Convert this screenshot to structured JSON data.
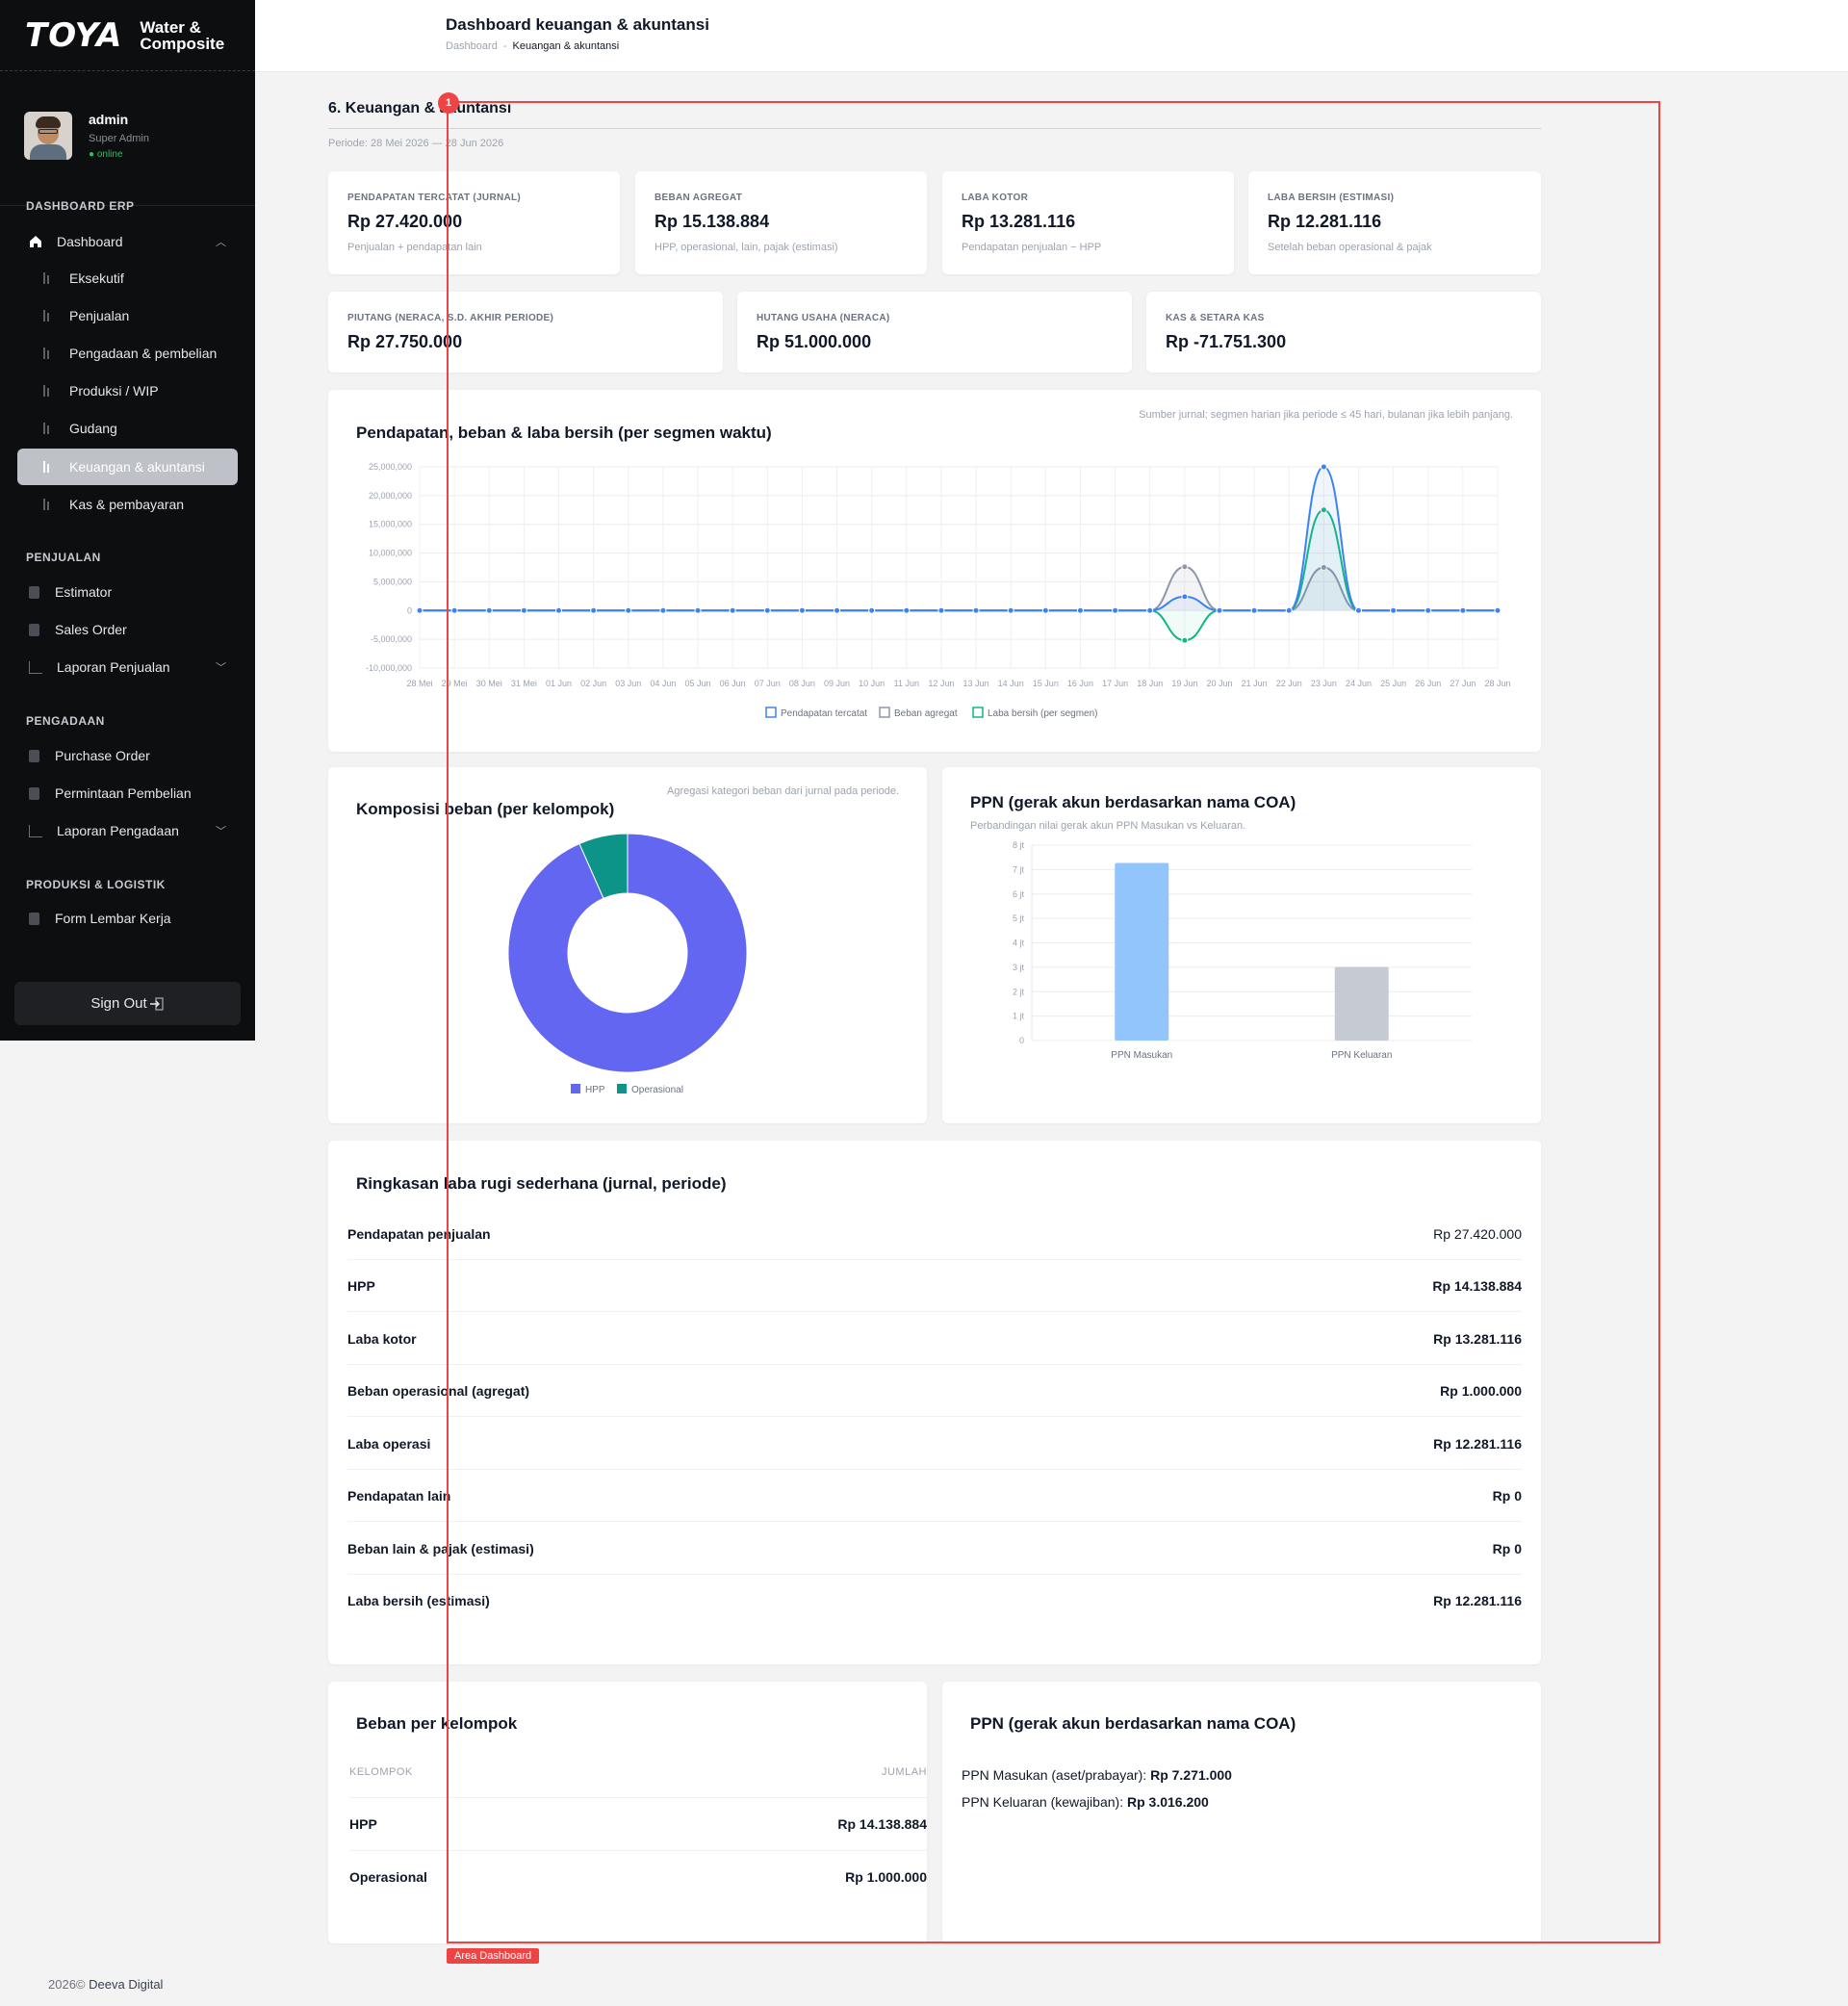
{
  "brand": {
    "logo": "TOYA",
    "sub_line1": "Water &",
    "sub_line2": "Composite"
  },
  "user": {
    "name": "admin",
    "role": "Super Admin",
    "status": "● online"
  },
  "nav": {
    "section_erp": "DASHBOARD ERP",
    "dashboard": "Dashboard",
    "sub_items": [
      "Eksekutif",
      "Penjualan",
      "Pengadaan & pembelian",
      "Produksi / WIP",
      "Gudang",
      "Keuangan & akuntansi",
      "Kas & pembayaran"
    ],
    "section_penjualan": "PENJUALAN",
    "penjualan_items": [
      "Estimator",
      "Sales Order",
      "Laporan Penjualan"
    ],
    "section_pengadaan": "PENGADAAN",
    "pengadaan_items": [
      "Purchase Order",
      "Permintaan Pembelian",
      "Laporan Pengadaan"
    ],
    "section_produksi": "PRODUKSI & LOGISTIK",
    "produksi_items": [
      "Form Lembar Kerja"
    ],
    "sign_out": "Sign Out"
  },
  "header": {
    "title": "Dashboard keuangan & akuntansi",
    "breadcrumb_root": "Dashboard",
    "breadcrumb_sep": "-",
    "breadcrumb_current": "Keuangan & akuntansi"
  },
  "section": {
    "title": "6. Keuangan & akuntansi",
    "period": "Periode: 28 Mei 2026 — 28 Jun 2026"
  },
  "kpis_row1": [
    {
      "label": "PENDAPATAN TERCATAT (JURNAL)",
      "value": "Rp 27.420.000",
      "note": "Penjualan + pendapatan lain"
    },
    {
      "label": "BEBAN AGREGAT",
      "value": "Rp 15.138.884",
      "note": "HPP, operasional, lain, pajak (estimasi)"
    },
    {
      "label": "LABA KOTOR",
      "value": "Rp 13.281.116",
      "note": "Pendapatan penjualan − HPP"
    },
    {
      "label": "LABA BERSIH (ESTIMASI)",
      "value": "Rp 12.281.116",
      "note": "Setelah beban operasional & pajak"
    }
  ],
  "kpis_row2": [
    {
      "label": "PIUTANG (NERACA, S.D. AKHIR PERIODE)",
      "value": "Rp 27.750.000"
    },
    {
      "label": "HUTANG USAHA (NERACA)",
      "value": "Rp 51.000.000"
    },
    {
      "label": "KAS & SETARA KAS",
      "value": "Rp -71.751.300"
    }
  ],
  "line_card": {
    "title": "Pendapatan, beban & laba bersih (per segmen waktu)",
    "note": "Sumber jurnal; segmen harian jika periode ≤ 45 hari, bulanan jika lebih panjang."
  },
  "donut_card": {
    "title": "Komposisi beban (per kelompok)",
    "note": "Agregasi kategori beban dari jurnal pada periode."
  },
  "ppn_chart_card": {
    "title": "PPN (gerak akun berdasarkan nama COA)",
    "note": "Perbandingan nilai gerak akun PPN Masukan vs Keluaran."
  },
  "pl_card": {
    "title": "Ringkasan laba rugi sederhana (jurnal, periode)",
    "rows": [
      {
        "label": "Pendapatan penjualan",
        "value": "Rp 27.420.000"
      },
      {
        "label": "HPP",
        "value": "Rp 14.138.884"
      },
      {
        "label": "Laba kotor",
        "value": "Rp 13.281.116"
      },
      {
        "label": "Beban operasional (agregat)",
        "value": "Rp 1.000.000"
      },
      {
        "label": "Laba operasi",
        "value": "Rp 12.281.116"
      },
      {
        "label": "Pendapatan lain",
        "value": "Rp 0"
      },
      {
        "label": "Beban lain & pajak (estimasi)",
        "value": "Rp 0"
      },
      {
        "label": "Laba bersih (estimasi)",
        "value": "Rp 12.281.116"
      }
    ]
  },
  "group_card": {
    "title": "Beban per kelompok",
    "col_group": "KELOMPOK",
    "col_amount": "JUMLAH",
    "rows": [
      {
        "group": "HPP",
        "amount": "Rp 14.138.884"
      },
      {
        "group": "Operasional",
        "amount": "Rp 1.000.000"
      }
    ]
  },
  "ppn_text_card": {
    "title": "PPN (gerak akun berdasarkan nama COA)",
    "masukan_label": "PPN Masukan (aset/prabayar):",
    "masukan_value": "Rp 7.271.000",
    "keluaran_label": "PPN Keluaran (kewajiban):",
    "keluaran_value": "Rp 3.016.200"
  },
  "overlay": {
    "badge": "1",
    "label": "Area Dashboard"
  },
  "footer": {
    "year": "2026©",
    "company": "Deeva Digital"
  },
  "colors": {
    "revenue": "#3b82f6",
    "expense": "#8f96a6",
    "profit": "#10b981",
    "hpp": "#6366f1",
    "operasional": "#0d9488",
    "ppn_in": "#93c5fd",
    "ppn_out": "#c5cad3"
  },
  "chart_data": [
    {
      "type": "line",
      "x": [
        "28 Mei",
        "29 Mei",
        "30 Mei",
        "31 Mei",
        "01 Jun",
        "02 Jun",
        "03 Jun",
        "04 Jun",
        "05 Jun",
        "06 Jun",
        "07 Jun",
        "08 Jun",
        "09 Jun",
        "10 Jun",
        "11 Jun",
        "12 Jun",
        "13 Jun",
        "14 Jun",
        "15 Jun",
        "16 Jun",
        "17 Jun",
        "18 Jun",
        "19 Jun",
        "20 Jun",
        "21 Jun",
        "22 Jun",
        "23 Jun",
        "24 Jun",
        "25 Jun",
        "26 Jun",
        "27 Jun",
        "28 Jun"
      ],
      "yticks": [
        "25,000,000",
        "20,000,000",
        "15,000,000",
        "10,000,000",
        "5,000,000",
        "0",
        "-5,000,000",
        "-10,000,000"
      ],
      "ylim": [
        -10000000,
        25000000
      ],
      "series": [
        {
          "name": "Pendapatan tercatat",
          "values": [
            0,
            0,
            0,
            0,
            0,
            0,
            0,
            0,
            0,
            0,
            0,
            0,
            0,
            0,
            0,
            0,
            0,
            0,
            0,
            0,
            0,
            0,
            2420000,
            0,
            0,
            0,
            25000000,
            0,
            0,
            0,
            0,
            0
          ]
        },
        {
          "name": "Beban agregat",
          "values": [
            0,
            0,
            0,
            0,
            0,
            0,
            0,
            0,
            0,
            0,
            0,
            0,
            0,
            0,
            0,
            0,
            0,
            0,
            0,
            0,
            0,
            0,
            7600000,
            0,
            0,
            0,
            7500000,
            0,
            0,
            0,
            0,
            0
          ]
        },
        {
          "name": "Laba bersih (per segmen)",
          "values": [
            0,
            0,
            0,
            0,
            0,
            0,
            0,
            0,
            0,
            0,
            0,
            0,
            0,
            0,
            0,
            0,
            0,
            0,
            0,
            0,
            0,
            0,
            -5180000,
            0,
            0,
            0,
            17500000,
            0,
            0,
            0,
            0,
            0
          ]
        }
      ],
      "legend": "bottom",
      "grid": true
    },
    {
      "type": "pie",
      "categories": [
        "HPP",
        "Operasional"
      ],
      "values": [
        14138884,
        1000000
      ],
      "legend": "bottom"
    },
    {
      "type": "bar",
      "categories": [
        "PPN Masukan",
        "PPN Keluaran"
      ],
      "values": [
        7271000,
        3016200
      ],
      "yticks": [
        "8 jt",
        "7 jt",
        "6 jt",
        "5 jt",
        "4 jt",
        "3 jt",
        "2 jt",
        "1 jt",
        "0"
      ],
      "ylim": [
        0,
        8000000
      ],
      "grid": true
    }
  ]
}
